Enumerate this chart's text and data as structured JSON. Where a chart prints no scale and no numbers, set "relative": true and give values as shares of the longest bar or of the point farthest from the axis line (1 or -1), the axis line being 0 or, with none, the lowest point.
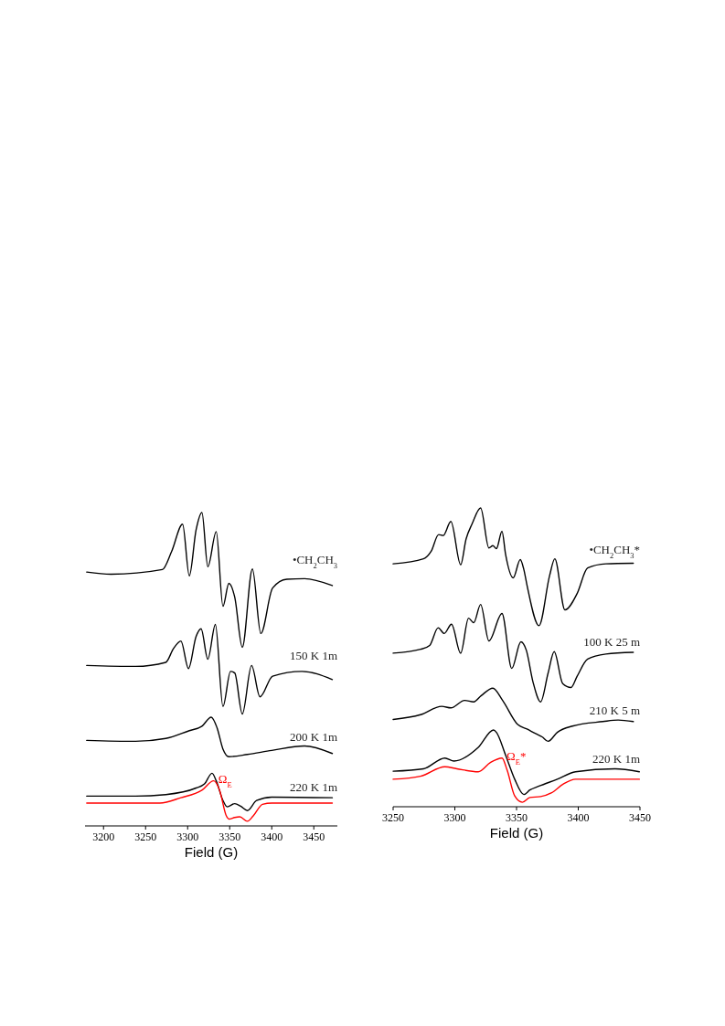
{
  "chart_data": [
    {
      "type": "line",
      "relative": true,
      "xlabel": "Field (G)",
      "xlim": [
        3178,
        3478
      ],
      "xticks": [
        3200,
        3250,
        3300,
        3350,
        3400,
        3450
      ],
      "series": [
        {
          "name": "•CH$_{2}$CH$_{3}$",
          "color": "#000000",
          "x": [
            3180,
            3209,
            3270,
            3281,
            3294,
            3302,
            3310,
            3317,
            3324,
            3334,
            3342,
            3349,
            3356,
            3365,
            3377,
            3387,
            3401,
            3418,
            3439,
            3472
          ],
          "values": [
            0.81,
            0.803,
            0.818,
            0.876,
            0.963,
            0.798,
            0.944,
            1.0,
            0.827,
            0.939,
            0.701,
            0.774,
            0.73,
            0.57,
            0.82,
            0.614,
            0.759,
            0.787,
            0.789,
            0.767
          ]
        },
        {
          "name": "150 K 1m",
          "color": "#000000",
          "x": [
            3180,
            3238,
            3274,
            3283,
            3292,
            3301,
            3310,
            3316,
            3324,
            3333,
            3342,
            3351,
            3356,
            3365,
            3376,
            3386,
            3401,
            3436,
            3472
          ],
          "values": [
            0.512,
            0.509,
            0.522,
            0.565,
            0.59,
            0.502,
            0.604,
            0.629,
            0.532,
            0.643,
            0.381,
            0.493,
            0.488,
            0.357,
            0.512,
            0.412,
            0.478,
            0.493,
            0.467
          ]
        },
        {
          "name": "200 K 1m",
          "color": "#000000",
          "x": [
            3180,
            3238,
            3274,
            3302,
            3317,
            3328,
            3335,
            3342,
            3349,
            3371,
            3400,
            3439,
            3472
          ],
          "values": [
            0.273,
            0.27,
            0.279,
            0.304,
            0.318,
            0.347,
            0.313,
            0.245,
            0.221,
            0.228,
            0.241,
            0.255,
            0.231
          ]
        },
        {
          "name": "220 K 1m",
          "color": "#000000",
          "x": [
            3180,
            3238,
            3274,
            3310,
            3320,
            3329,
            3334,
            3342,
            3347,
            3356,
            3363,
            3371,
            3382,
            3400,
            3472
          ],
          "values": [
            0.095,
            0.095,
            0.1,
            0.121,
            0.134,
            0.168,
            0.144,
            0.081,
            0.061,
            0.071,
            0.063,
            0.049,
            0.081,
            0.092,
            0.09
          ]
        },
        {
          "name": "Ω$_{E}$",
          "color": "#ff0000",
          "x": [
            3180,
            3267,
            3292,
            3317,
            3331,
            3338,
            3346,
            3349,
            3356,
            3362,
            3371,
            3378,
            3389,
            3400,
            3472
          ],
          "values": [
            0.073,
            0.073,
            0.09,
            0.114,
            0.144,
            0.114,
            0.032,
            0.022,
            0.027,
            0.029,
            0.015,
            0.032,
            0.069,
            0.073,
            0.073
          ]
        }
      ]
    },
    {
      "type": "line",
      "relative": true,
      "xlabel": "Field (G)",
      "xlim": [
        3250,
        3450
      ],
      "xticks": [
        3250,
        3300,
        3350,
        3400,
        3450
      ],
      "series": [
        {
          "name": "•CH$_{2}$CH$_{3}$*",
          "color": "#000000",
          "x": [
            3250,
            3274.6,
            3280.8,
            3286.9,
            3290.6,
            3296.8,
            3304.7,
            3309.1,
            3314,
            3320.9,
            3327.6,
            3330.8,
            3333.7,
            3338.2,
            3341.1,
            3347.3,
            3353,
            3355.9,
            3358.4,
            3368.2,
            3376.8,
            3381,
            3389.2,
            3399,
            3407.6,
            3422.4,
            3444.6
          ],
          "values": [
            0.813,
            0.83,
            0.855,
            0.911,
            0.908,
            0.955,
            0.81,
            0.896,
            0.947,
            1.0,
            0.866,
            0.874,
            0.864,
            0.922,
            0.845,
            0.766,
            0.827,
            0.794,
            0.743,
            0.606,
            0.774,
            0.83,
            0.659,
            0.713,
            0.799,
            0.813,
            0.815
          ]
        },
        {
          "name": "100 K 25 m",
          "color": "#000000",
          "x": [
            3250,
            3272.2,
            3279.6,
            3286.5,
            3291.4,
            3297.3,
            3304.7,
            3311.1,
            3315.3,
            3320.9,
            3327.6,
            3338.2,
            3346.1,
            3353.5,
            3357.9,
            3363.3,
            3369.5,
            3375.6,
            3380.5,
            3387.4,
            3394.1,
            3399,
            3407.6,
            3422.4,
            3444.6
          ],
          "values": [
            0.514,
            0.527,
            0.54,
            0.599,
            0.58,
            0.611,
            0.514,
            0.631,
            0.616,
            0.677,
            0.555,
            0.647,
            0.463,
            0.552,
            0.524,
            0.418,
            0.351,
            0.448,
            0.519,
            0.412,
            0.399,
            0.436,
            0.494,
            0.511,
            0.517
          ]
        },
        {
          "name": "210 K 5 m",
          "color": "#000000",
          "x": [
            3250,
            3272.2,
            3289.4,
            3296.8,
            3307.9,
            3315.3,
            3321.4,
            3330.8,
            3338.7,
            3351,
            3358.4,
            3365.8,
            3370.7,
            3375.6,
            3383,
            3395.3,
            3419.9,
            3432.3,
            3444.6
          ],
          "values": [
            0.292,
            0.308,
            0.336,
            0.331,
            0.356,
            0.351,
            0.372,
            0.397,
            0.356,
            0.275,
            0.26,
            0.244,
            0.234,
            0.219,
            0.249,
            0.27,
            0.285,
            0.29,
            0.285
          ]
        },
        {
          "name": "220 K 1m",
          "color": "#000000",
          "x": [
            3250,
            3274.6,
            3291.9,
            3299.3,
            3319,
            3331.3,
            3333.7,
            3341.1,
            3348.5,
            3355.9,
            3360.8,
            3368.2,
            3383,
            3397.8,
            3429.8,
            3449.5
          ],
          "values": [
            0.119,
            0.127,
            0.163,
            0.153,
            0.199,
            0.257,
            0.249,
            0.173,
            0.092,
            0.041,
            0.056,
            0.069,
            0.092,
            0.117,
            0.127,
            0.117
          ]
        },
        {
          "name": "Ω$_{E}$*",
          "color": "#ff0000",
          "x": [
            3250,
            3272.2,
            3291.9,
            3301.7,
            3319,
            3328.8,
            3338.2,
            3342.4,
            3348.5,
            3354.7,
            3360.8,
            3369.5,
            3378.1,
            3387.9,
            3397.8,
            3449.5
          ],
          "values": [
            0.092,
            0.102,
            0.134,
            0.127,
            0.117,
            0.148,
            0.163,
            0.122,
            0.036,
            0.015,
            0.031,
            0.034,
            0.046,
            0.076,
            0.092,
            0.092
          ]
        }
      ]
    }
  ]
}
